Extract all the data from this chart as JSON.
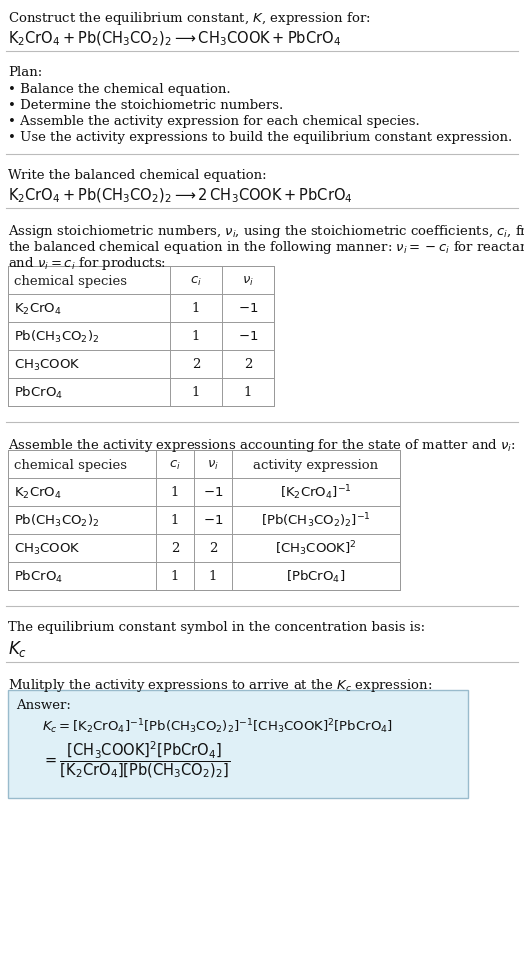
{
  "bg_color": "#ffffff",
  "text_color": "#111111",
  "table_border_color": "#999999",
  "answer_box_color": "#dff0f7",
  "answer_box_border": "#99bbcc",
  "title_line1": "Construct the equilibrium constant, $K$, expression for:",
  "title_line2": "$\\mathrm{K_2CrO_4 + Pb(CH_3CO_2)_2 \\longrightarrow CH_3COOK + PbCrO_4}$",
  "plan_header": "Plan:",
  "plan_items": [
    "Balance the chemical equation.",
    "Determine the stoichiometric numbers.",
    "Assemble the activity expression for each chemical species.",
    "Use the activity expressions to build the equilibrium constant expression."
  ],
  "balanced_header": "Write the balanced chemical equation:",
  "balanced_eq": "$\\mathrm{K_2CrO_4 + Pb(CH_3CO_2)_2 \\longrightarrow 2\\, CH_3COOK + PbCrO_4}$",
  "stoich_intro1": "Assign stoichiometric numbers, $\\nu_i$, using the stoichiometric coefficients, $c_i$, from",
  "stoich_intro2": "the balanced chemical equation in the following manner: $\\nu_i = -c_i$ for reactants",
  "stoich_intro3": "and $\\nu_i = c_i$ for products:",
  "table1_col0": "chemical species",
  "table1_col1": "$c_i$",
  "table1_col2": "$\\nu_i$",
  "table1_rows": [
    [
      "$\\mathrm{K_2CrO_4}$",
      "1",
      "$-1$"
    ],
    [
      "$\\mathrm{Pb(CH_3CO_2)_2}$",
      "1",
      "$-1$"
    ],
    [
      "$\\mathrm{CH_3COOK}$",
      "2",
      "2"
    ],
    [
      "$\\mathrm{PbCrO_4}$",
      "1",
      "1"
    ]
  ],
  "activity_header1": "Assemble the activity expressions accounting for the state of matter and $\\nu_i$:",
  "table2_col0": "chemical species",
  "table2_col1": "$c_i$",
  "table2_col2": "$\\nu_i$",
  "table2_col3": "activity expression",
  "table2_rows": [
    [
      "$\\mathrm{K_2CrO_4}$",
      "1",
      "$-1$",
      "$[\\mathrm{K_2CrO_4}]^{-1}$"
    ],
    [
      "$\\mathrm{Pb(CH_3CO_2)_2}$",
      "1",
      "$-1$",
      "$[\\mathrm{Pb(CH_3CO_2)_2}]^{-1}$"
    ],
    [
      "$\\mathrm{CH_3COOK}$",
      "2",
      "2",
      "$[\\mathrm{CH_3COOK}]^{2}$"
    ],
    [
      "$\\mathrm{PbCrO_4}$",
      "1",
      "1",
      "$[\\mathrm{PbCrO_4}]$"
    ]
  ],
  "kc_header": "The equilibrium constant symbol in the concentration basis is:",
  "kc_symbol": "$K_c$",
  "multiply_header": "Mulitply the activity expressions to arrive at the $K_c$ expression:",
  "answer_label": "Answer:",
  "answer_line1": "$K_c = [\\mathrm{K_2CrO_4}]^{-1}[\\mathrm{Pb(CH_3CO_2)_2}]^{-1}[\\mathrm{CH_3COOK}]^{2}[\\mathrm{PbCrO_4}]$",
  "answer_eq": "$= \\dfrac{[\\mathrm{CH_3COOK}]^{2}[\\mathrm{PbCrO_4}]}{[\\mathrm{K_2CrO_4}][\\mathrm{Pb(CH_3CO_2)_2}]}$"
}
